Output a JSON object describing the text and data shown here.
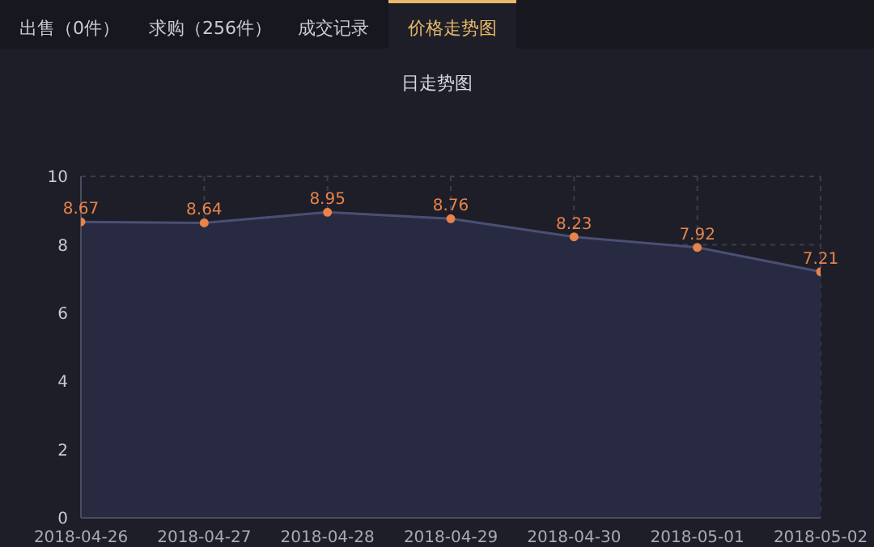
{
  "chart_data": {
    "type": "area",
    "title": "日走势图",
    "annotations": [
      "出售（0件）",
      "求购（256件）",
      "成交记录",
      "价格走势图"
    ],
    "categories": [
      "2018-04-26",
      "2018-04-27",
      "2018-04-28",
      "2018-04-29",
      "2018-04-30",
      "2018-05-01",
      "2018-05-02"
    ],
    "series": [
      {
        "color": "#4b4f74",
        "values": [
          8.67,
          8.64,
          8.95,
          8.76,
          8.23,
          7.92,
          7.21
        ]
      }
    ],
    "ylim": [
      0,
      10
    ],
    "yticks": [
      0,
      2,
      4,
      6,
      8,
      10
    ],
    "grid": true,
    "marker": "circle",
    "data_labels": true
  }
}
